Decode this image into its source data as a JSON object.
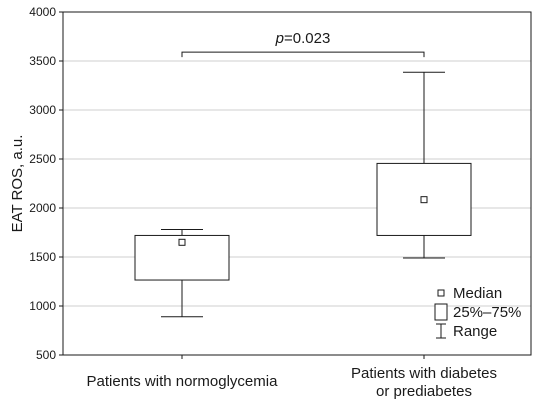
{
  "chart_data": {
    "type": "box",
    "ylabel": "EAT ROS, a.u.",
    "ylim": [
      500,
      4000
    ],
    "yticks": [
      500,
      1000,
      1500,
      2000,
      2500,
      3000,
      3500,
      4000
    ],
    "grid": true,
    "categories": [
      {
        "lines": [
          "Patients with normoglycemia"
        ]
      },
      {
        "lines": [
          "Patients with diabetes",
          "or prediabetes"
        ]
      }
    ],
    "boxes": [
      {
        "min": 890,
        "q1": 1265,
        "median": 1650,
        "q3": 1720,
        "max": 1780
      },
      {
        "min": 1490,
        "q1": 1720,
        "median": 2085,
        "q3": 2455,
        "max": 3385
      }
    ],
    "significance": {
      "p_italic": "p",
      "p_rest": "=0.023",
      "y": 3590
    },
    "legend": {
      "position": "bottom-right",
      "items": [
        {
          "symbol": "median-marker",
          "label": "Median"
        },
        {
          "symbol": "box",
          "label": "25%–75%"
        },
        {
          "symbol": "whisker",
          "label": "Range"
        }
      ]
    }
  }
}
